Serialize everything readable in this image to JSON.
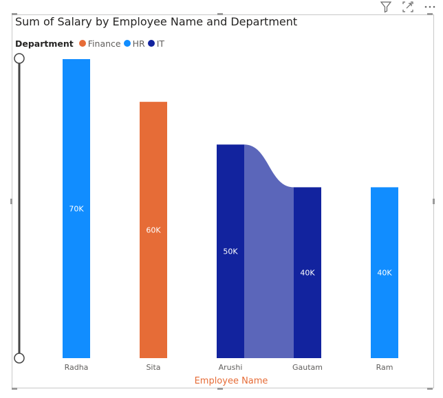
{
  "header_icons": [
    "filter-icon",
    "focus-mode-icon",
    "more-options-icon"
  ],
  "chart_data": {
    "type": "ribbon",
    "title": "Sum of Salary by Employee Name and Department",
    "legend_title": "Department",
    "legend": [
      {
        "name": "Finance",
        "color": "#E66C37"
      },
      {
        "name": "HR",
        "color": "#118DFF"
      },
      {
        "name": "IT",
        "color": "#12239E"
      }
    ],
    "xlabel": "Employee Name",
    "categories": [
      "Radha",
      "Sita",
      "Arushi",
      "Gautam",
      "Ram"
    ],
    "bars": [
      {
        "category": "Radha",
        "department": "HR",
        "value": 70000,
        "label": "70K"
      },
      {
        "category": "Sita",
        "department": "Finance",
        "value": 60000,
        "label": "60K"
      },
      {
        "category": "Arushi",
        "department": "IT",
        "value": 50000,
        "label": "50K"
      },
      {
        "category": "Gautam",
        "department": "IT",
        "value": 40000,
        "label": "40K"
      },
      {
        "category": "Ram",
        "department": "HR",
        "value": 40000,
        "label": "40K"
      }
    ],
    "ribbons": [
      {
        "from": "Arushi",
        "to": "Gautam",
        "department": "IT",
        "color": "#5B66BA"
      }
    ],
    "ylim": [
      0,
      70000
    ],
    "gridlines": false,
    "legend_position": "top-left"
  }
}
